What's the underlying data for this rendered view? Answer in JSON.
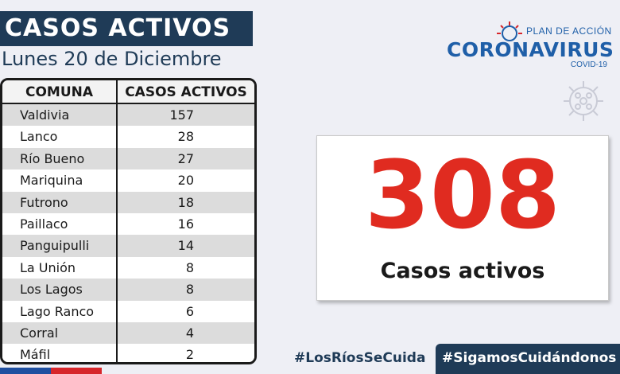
{
  "header": {
    "title": "CASOS ACTIVOS",
    "date": "Lunes 20 de Diciembre"
  },
  "table": {
    "columns": [
      "COMUNA",
      "CASOS ACTIVOS"
    ],
    "rows": [
      {
        "comuna": "Valdivia",
        "casos": "157"
      },
      {
        "comuna": "Lanco",
        "casos": "28"
      },
      {
        "comuna": "Río Bueno",
        "casos": "27"
      },
      {
        "comuna": "Mariquina",
        "casos": "20"
      },
      {
        "comuna": "Futrono",
        "casos": "18"
      },
      {
        "comuna": "Paillaco",
        "casos": "16"
      },
      {
        "comuna": "Panguipulli",
        "casos": "14"
      },
      {
        "comuna": "La Unión",
        "casos": "8"
      },
      {
        "comuna": "Los Lagos",
        "casos": "8"
      },
      {
        "comuna": "Lago Ranco",
        "casos": "6"
      },
      {
        "comuna": "Corral",
        "casos": "4"
      },
      {
        "comuna": "Máfil",
        "casos": "2"
      }
    ]
  },
  "logo": {
    "plan": "PLAN DE ACCIÓN",
    "name": "CORONAVIRUS",
    "sub": "COVID-19",
    "icon": "virus-icon"
  },
  "summary": {
    "total": "308",
    "label": "Casos activos"
  },
  "footer": {
    "hashtag1": "#LosRíosSeCuida",
    "hashtag2": "#SigamosCuidándonos"
  },
  "colors": {
    "navy": "#1f3b57",
    "accent_red": "#e02b20",
    "logo_blue": "#1f5fa8",
    "background": "#eeeff5"
  }
}
